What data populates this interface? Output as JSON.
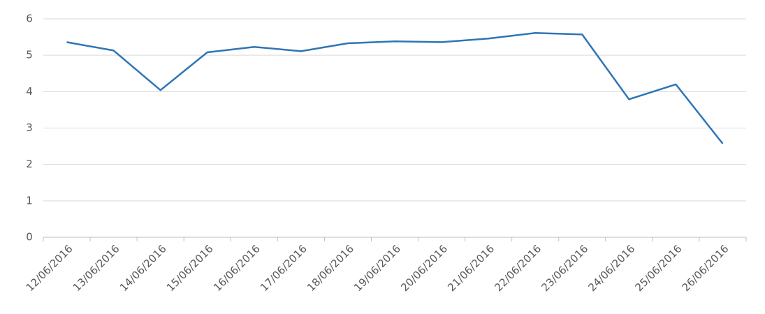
{
  "chart_data": {
    "type": "line",
    "categories": [
      "12/06/2016",
      "13/06/2016",
      "14/06/2016",
      "15/06/2016",
      "16/06/2016",
      "17/06/2016",
      "18/06/2016",
      "19/06/2016",
      "20/06/2016",
      "21/06/2016",
      "22/06/2016",
      "23/06/2016",
      "24/06/2016",
      "25/06/2016",
      "26/06/2016"
    ],
    "series": [
      {
        "color": "#2e75b6",
        "values": [
          5.36,
          5.13,
          4.04,
          5.08,
          5.23,
          5.11,
          5.33,
          5.38,
          5.36,
          5.46,
          5.61,
          5.57,
          3.79,
          4.2,
          2.57
        ]
      }
    ],
    "ylim": [
      0,
      6
    ],
    "yticks": [
      0,
      1,
      2,
      3,
      4,
      5,
      6
    ],
    "grid": true
  }
}
